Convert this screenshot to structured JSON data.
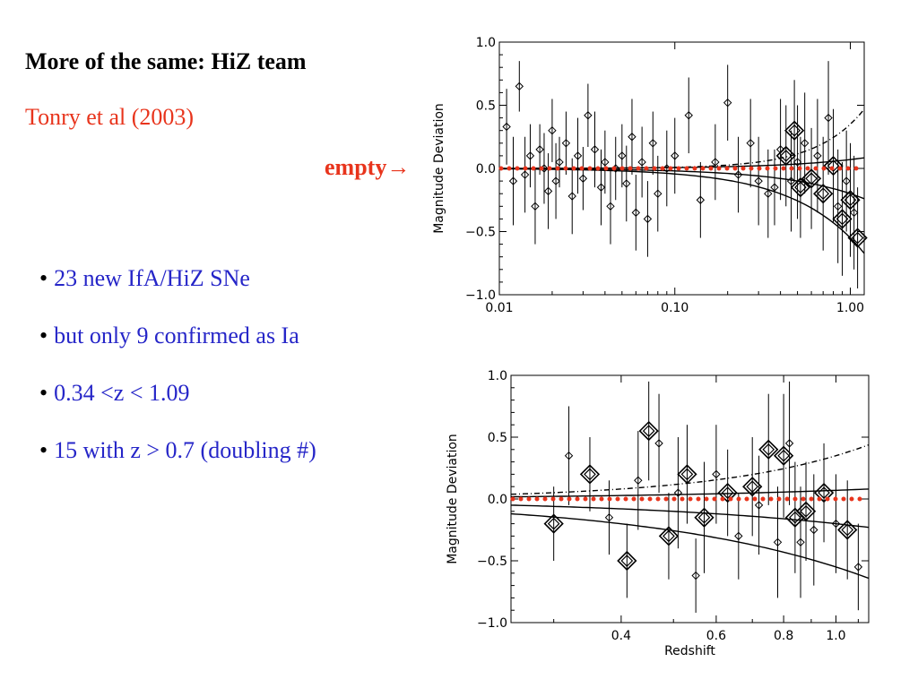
{
  "slide": {
    "title": "More of the same: HiZ team",
    "subtitle": "Tonry et al (2003)",
    "bullets": [
      "23 new IfA/HiZ SNe",
      "but only 9 confirmed as Ia",
      "0.34 <z < 1.09",
      "15 with z > 0.7 (doubling #)"
    ],
    "annotation": "empty→",
    "colors": {
      "title": "#000000",
      "subtitle": "#e8341c",
      "bullet_text": "#2626c8",
      "annotation": "#e8341c"
    }
  },
  "chart_data": [
    {
      "type": "scatter",
      "title": "",
      "xlabel": "",
      "ylabel": "Magnitude Deviation",
      "x_scale": "log",
      "xlim": [
        0.01,
        1.2
      ],
      "ylim": [
        -1.0,
        1.0
      ],
      "x_ticks": [
        "0.01",
        "0.10",
        "1.00"
      ],
      "y_ticks": [
        "-1.0",
        "-0.5",
        "0.0",
        "0.5",
        "1.0"
      ],
      "reference_line": {
        "style": "red dotted",
        "y": 0.0,
        "label": "empty"
      },
      "series": [
        {
          "name": "",
          "points": [
            {
              "x": 0.011,
              "y": 0.33,
              "err": 0.3
            },
            {
              "x": 0.012,
              "y": -0.1,
              "err": 0.35
            },
            {
              "x": 0.013,
              "y": 0.65,
              "err": 0.2
            },
            {
              "x": 0.014,
              "y": -0.05,
              "err": 0.3
            },
            {
              "x": 0.015,
              "y": 0.1,
              "err": 0.25
            },
            {
              "x": 0.016,
              "y": -0.3,
              "err": 0.3
            },
            {
              "x": 0.017,
              "y": 0.15,
              "err": 0.2
            },
            {
              "x": 0.018,
              "y": 0.0,
              "err": 0.28
            },
            {
              "x": 0.019,
              "y": -0.18,
              "err": 0.3
            },
            {
              "x": 0.02,
              "y": 0.3,
              "err": 0.25
            },
            {
              "x": 0.021,
              "y": -0.1,
              "err": 0.3
            },
            {
              "x": 0.022,
              "y": 0.05,
              "err": 0.2
            },
            {
              "x": 0.024,
              "y": 0.2,
              "err": 0.25
            },
            {
              "x": 0.026,
              "y": -0.22,
              "err": 0.3
            },
            {
              "x": 0.028,
              "y": 0.1,
              "err": 0.3
            },
            {
              "x": 0.03,
              "y": -0.08,
              "err": 0.25
            },
            {
              "x": 0.032,
              "y": 0.42,
              "err": 0.25
            },
            {
              "x": 0.035,
              "y": 0.15,
              "err": 0.3
            },
            {
              "x": 0.038,
              "y": -0.15,
              "err": 0.3
            },
            {
              "x": 0.04,
              "y": 0.05,
              "err": 0.25
            },
            {
              "x": 0.043,
              "y": -0.3,
              "err": 0.3
            },
            {
              "x": 0.046,
              "y": 0.0,
              "err": 0.25
            },
            {
              "x": 0.05,
              "y": 0.1,
              "err": 0.25
            },
            {
              "x": 0.053,
              "y": -0.12,
              "err": 0.3
            },
            {
              "x": 0.057,
              "y": 0.25,
              "err": 0.3
            },
            {
              "x": 0.06,
              "y": -0.35,
              "err": 0.3
            },
            {
              "x": 0.065,
              "y": 0.05,
              "err": 0.28
            },
            {
              "x": 0.07,
              "y": -0.4,
              "err": 0.3
            },
            {
              "x": 0.075,
              "y": 0.2,
              "err": 0.25
            },
            {
              "x": 0.08,
              "y": -0.2,
              "err": 0.3
            },
            {
              "x": 0.09,
              "y": 0.0,
              "err": 0.3
            },
            {
              "x": 0.1,
              "y": 0.1,
              "err": 0.3
            },
            {
              "x": 0.12,
              "y": 0.42,
              "err": 0.3
            },
            {
              "x": 0.14,
              "y": -0.25,
              "err": 0.3
            },
            {
              "x": 0.17,
              "y": 0.05,
              "err": 0.3
            },
            {
              "x": 0.2,
              "y": 0.52,
              "err": 0.3
            },
            {
              "x": 0.23,
              "y": -0.05,
              "err": 0.3
            },
            {
              "x": 0.27,
              "y": 0.2,
              "err": 0.35
            },
            {
              "x": 0.3,
              "y": -0.1,
              "err": 0.35
            },
            {
              "x": 0.34,
              "y": -0.2,
              "err": 0.35
            },
            {
              "x": 0.37,
              "y": -0.15,
              "err": 0.3
            },
            {
              "x": 0.4,
              "y": 0.15,
              "err": 0.4
            },
            {
              "x": 0.43,
              "y": 0.1,
              "err": 0.4
            },
            {
              "x": 0.46,
              "y": -0.1,
              "err": 0.4
            },
            {
              "x": 0.48,
              "y": 0.3,
              "err": 0.4
            },
            {
              "x": 0.5,
              "y": 0.05,
              "err": 0.45
            },
            {
              "x": 0.52,
              "y": -0.15,
              "err": 0.4
            },
            {
              "x": 0.55,
              "y": 0.2,
              "err": 0.4
            },
            {
              "x": 0.6,
              "y": -0.08,
              "err": 0.4
            },
            {
              "x": 0.65,
              "y": 0.1,
              "err": 0.45
            },
            {
              "x": 0.7,
              "y": -0.2,
              "err": 0.45
            },
            {
              "x": 0.75,
              "y": 0.4,
              "err": 0.45
            },
            {
              "x": 0.8,
              "y": 0.02,
              "err": 0.45
            },
            {
              "x": 0.85,
              "y": -0.3,
              "err": 0.45
            },
            {
              "x": 0.9,
              "y": -0.4,
              "err": 0.45
            },
            {
              "x": 0.95,
              "y": -0.1,
              "err": 0.4
            },
            {
              "x": 1.0,
              "y": -0.25,
              "err": 0.45
            },
            {
              "x": 1.05,
              "y": -0.35,
              "err": 0.45
            },
            {
              "x": 1.1,
              "y": -0.55,
              "err": 0.4
            }
          ]
        }
      ],
      "model_curves": "theory curves (solid and dash-dot) diverging from 0.0 at high redshift"
    },
    {
      "type": "scatter",
      "title": "",
      "xlabel": "Redshift",
      "ylabel": "Magnitude Deviation",
      "x_scale": "log",
      "xlim": [
        0.25,
        1.15
      ],
      "ylim": [
        -1.0,
        1.0
      ],
      "x_ticks": [
        "0.4",
        "0.6",
        "0.8",
        "1.0"
      ],
      "y_ticks": [
        "-1.0",
        "-0.5",
        "0.0",
        "0.5",
        "1.0"
      ],
      "reference_line": {
        "style": "red dotted",
        "y": 0.0
      },
      "series": [
        {
          "name": "",
          "points": [
            {
              "x": 0.3,
              "y": -0.2,
              "err": 0.3
            },
            {
              "x": 0.32,
              "y": 0.35,
              "err": 0.4
            },
            {
              "x": 0.35,
              "y": 0.2,
              "err": 0.3
            },
            {
              "x": 0.38,
              "y": -0.15,
              "err": 0.3
            },
            {
              "x": 0.41,
              "y": -0.5,
              "err": 0.3
            },
            {
              "x": 0.43,
              "y": 0.15,
              "err": 0.4
            },
            {
              "x": 0.45,
              "y": 0.55,
              "err": 0.4
            },
            {
              "x": 0.47,
              "y": 0.45,
              "err": 0.4
            },
            {
              "x": 0.49,
              "y": -0.3,
              "err": 0.35
            },
            {
              "x": 0.51,
              "y": 0.05,
              "err": 0.45
            },
            {
              "x": 0.53,
              "y": 0.2,
              "err": 0.4
            },
            {
              "x": 0.55,
              "y": -0.62,
              "err": 0.3
            },
            {
              "x": 0.57,
              "y": -0.15,
              "err": 0.45
            },
            {
              "x": 0.6,
              "y": 0.2,
              "err": 0.4
            },
            {
              "x": 0.63,
              "y": 0.05,
              "err": 0.35
            },
            {
              "x": 0.66,
              "y": -0.3,
              "err": 0.35
            },
            {
              "x": 0.7,
              "y": 0.1,
              "err": 0.4
            },
            {
              "x": 0.72,
              "y": -0.05,
              "err": 0.4
            },
            {
              "x": 0.75,
              "y": 0.4,
              "err": 0.45
            },
            {
              "x": 0.78,
              "y": -0.35,
              "err": 0.45
            },
            {
              "x": 0.8,
              "y": 0.35,
              "err": 0.5
            },
            {
              "x": 0.82,
              "y": 0.45,
              "err": 0.5
            },
            {
              "x": 0.84,
              "y": -0.15,
              "err": 0.45
            },
            {
              "x": 0.86,
              "y": -0.35,
              "err": 0.45
            },
            {
              "x": 0.88,
              "y": -0.1,
              "err": 0.4
            },
            {
              "x": 0.91,
              "y": -0.25,
              "err": 0.45
            },
            {
              "x": 0.95,
              "y": 0.05,
              "err": 0.4
            },
            {
              "x": 1.0,
              "y": -0.2,
              "err": 0.4
            },
            {
              "x": 1.05,
              "y": -0.25,
              "err": 0.4
            },
            {
              "x": 1.1,
              "y": -0.55,
              "err": 0.35
            }
          ]
        }
      ],
      "model_curves": "theory curves (solid and dash-dot) diverging from 0.0 at high redshift"
    }
  ]
}
